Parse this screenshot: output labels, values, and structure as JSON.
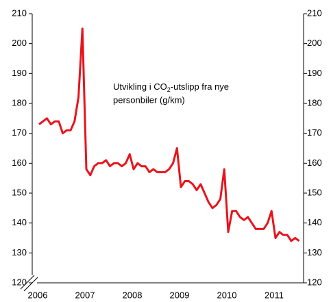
{
  "chart_data": {
    "type": "line",
    "title": [
      "Utvikling i CO",
      "2",
      "-utslipp fra nye",
      "personbiler (g/km)"
    ],
    "categories": [
      "2006",
      null,
      null,
      null,
      null,
      null,
      null,
      null,
      null,
      null,
      null,
      null,
      "2007",
      null,
      null,
      null,
      null,
      null,
      null,
      null,
      null,
      null,
      null,
      null,
      "2008",
      null,
      null,
      null,
      null,
      null,
      null,
      null,
      null,
      null,
      null,
      null,
      "2009",
      null,
      null,
      null,
      null,
      null,
      null,
      null,
      null,
      null,
      null,
      null,
      "2010",
      null,
      null,
      null,
      null,
      null,
      null,
      null,
      null,
      null,
      null,
      null,
      "2011",
      null,
      null,
      null,
      null,
      null,
      null
    ],
    "series": [
      {
        "color": "#e8141b",
        "values": [
          173,
          174,
          175,
          173,
          174,
          174,
          170,
          171,
          171,
          174,
          182,
          205,
          158,
          156,
          159,
          160,
          160,
          161,
          159,
          160,
          160,
          159,
          160,
          163,
          158,
          160,
          159,
          159,
          157,
          158,
          157,
          157,
          157,
          158,
          160,
          165,
          152,
          154,
          154,
          153,
          151,
          153,
          150,
          147,
          145,
          146,
          148,
          158,
          137,
          144,
          144,
          142,
          141,
          142,
          140,
          138,
          138,
          138,
          140,
          144,
          135,
          137,
          136,
          136,
          134,
          135,
          134
        ]
      }
    ],
    "ylim": [
      120,
      210
    ],
    "yticks": [
      120,
      130,
      140,
      150,
      160,
      170,
      180,
      190,
      200,
      210
    ],
    "y2lim": [
      120,
      210
    ],
    "y2ticks": [
      120,
      130,
      140,
      150,
      160,
      170,
      180,
      190,
      200,
      210
    ]
  }
}
